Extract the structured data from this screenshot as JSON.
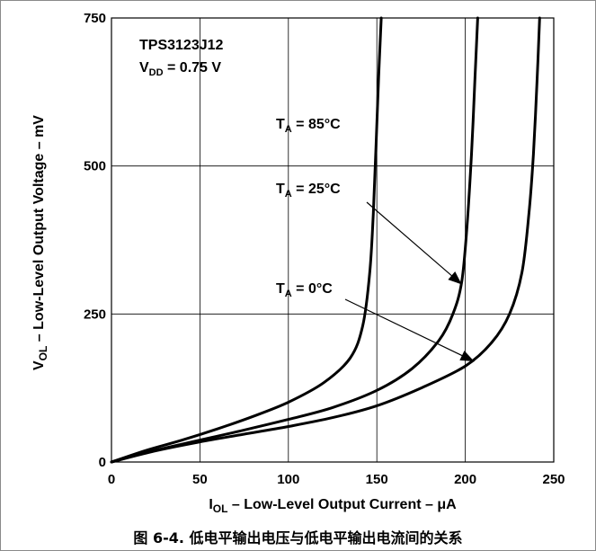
{
  "chart_data": {
    "type": "line",
    "xlim": [
      0,
      250
    ],
    "ylim": [
      0,
      750
    ],
    "x_ticks": [
      "0",
      "50",
      "100",
      "150",
      "200",
      "250"
    ],
    "y_ticks": [
      "0",
      "250",
      "500",
      "750"
    ],
    "grid": true,
    "xlabel": {
      "main": "I",
      "sub": "OL",
      "rest": " – Low-Level Output Current – μA"
    },
    "ylabel": {
      "main": "V",
      "sub": "OL",
      "rest": " – Low-Level Output Voltage – mV"
    },
    "annotation": {
      "line1": "TPS3123J12",
      "line2_main": "V",
      "line2_sub": "DD",
      "line2_rest": " = 0.75 V"
    },
    "series": [
      {
        "name": "T_A = 85°C",
        "label_main": "T",
        "label_sub": "A",
        "label_rest": " = 85°C",
        "x": [
          0,
          20,
          40,
          60,
          80,
          100,
          120,
          135,
          142,
          146,
          148,
          149.5,
          151,
          152.5
        ],
        "y": [
          0,
          20,
          37,
          56,
          77,
          101,
          134,
          176,
          230,
          320,
          420,
          530,
          650,
          750
        ]
      },
      {
        "name": "T_A = 25°C",
        "label_main": "T",
        "label_sub": "A",
        "label_rest": " = 25°C",
        "x": [
          0,
          25,
          50,
          75,
          100,
          125,
          150,
          170,
          185,
          193,
          198,
          201,
          203.5,
          205.5,
          207
        ],
        "y": [
          0,
          20,
          37,
          54,
          72,
          92,
          121,
          158,
          205,
          250,
          305,
          400,
          520,
          650,
          750
        ]
      },
      {
        "name": "T_A = 0°C",
        "label_main": "T",
        "label_sub": "A",
        "label_rest": " = 0°C",
        "x": [
          0,
          25,
          50,
          75,
          100,
          125,
          150,
          175,
          200,
          215,
          225,
          232,
          236,
          238.5,
          240.5,
          242
        ],
        "y": [
          0,
          19,
          34,
          47,
          60,
          75,
          95,
          125,
          162,
          202,
          250,
          320,
          420,
          520,
          640,
          750
        ]
      }
    ]
  },
  "caption": "图 6-4. 低电平输出电压与低电平输出电流间的关系"
}
